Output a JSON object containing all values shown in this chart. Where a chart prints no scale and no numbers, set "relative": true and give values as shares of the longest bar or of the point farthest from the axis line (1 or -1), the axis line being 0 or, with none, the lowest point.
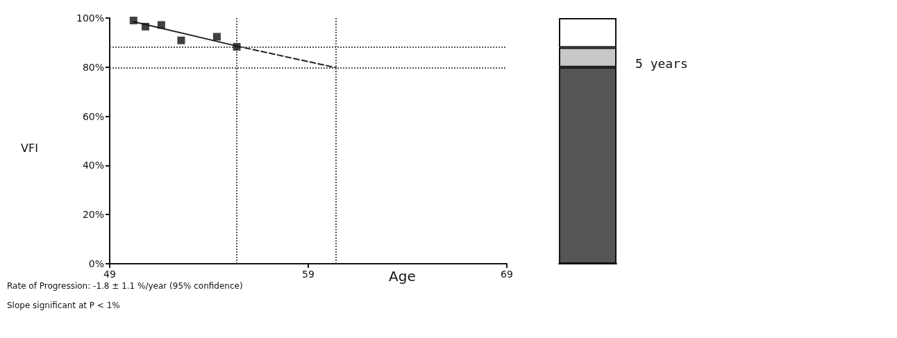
{
  "chart_data": [
    {
      "type": "scatter",
      "xlabel": "Age",
      "ylabel": "VFI",
      "marker": "square",
      "grid": false,
      "xlim": [
        49,
        69
      ],
      "xticks": [
        49,
        59,
        69
      ],
      "ylim": [
        0,
        100
      ],
      "yticks": [
        {
          "value": 0,
          "label": "0%"
        },
        {
          "value": 20,
          "label": "20%"
        },
        {
          "value": 40,
          "label": "40%"
        },
        {
          "value": 60,
          "label": "60%"
        },
        {
          "value": 80,
          "label": "80%"
        },
        {
          "value": 100,
          "label": "100%"
        }
      ],
      "series": [
        {
          "type": "scatter",
          "color": "#111111",
          "x": [
            50.2,
            50.8,
            51.6,
            52.6,
            54.4,
            55.4
          ],
          "values": [
            99,
            96.5,
            97.2,
            90.9,
            92.4,
            88.3
          ]
        },
        {
          "type": "line",
          "color": "#222222",
          "marker": "none",
          "line_style": "solid",
          "x": [
            50.2,
            55.4
          ],
          "values": [
            98.5,
            88.6
          ]
        },
        {
          "type": "line",
          "color": "#222222",
          "marker": "none",
          "line_style": "dashed",
          "x": [
            55.4,
            60.4
          ],
          "values": [
            88.6,
            79.8
          ]
        }
      ],
      "ref_lines": [
        {
          "axis": "x",
          "value": 55.4,
          "line_style": "dotted",
          "color": "#555555"
        },
        {
          "axis": "x",
          "value": 60.4,
          "line_style": "dotted",
          "color": "#555555"
        },
        {
          "axis": "y",
          "value": 88.3,
          "line_style": "dotted",
          "color": "#555555"
        },
        {
          "axis": "y",
          "value": 79.8,
          "line_style": "dotted",
          "color": "#555555"
        }
      ],
      "annotations": [
        "Rate of Progression: -1.8 ± 1.1 %/year (95% confidence)",
        "Slope significant at P < 1%"
      ]
    },
    {
      "type": "bar",
      "stacked": true,
      "categories": [
        null
      ],
      "relative": true,
      "series": [
        {
          "color": "#555555",
          "values": [
            0.8
          ]
        },
        {
          "color": "#c8c8c8",
          "values": [
            0.08
          ]
        },
        {
          "color": "#ffffff",
          "values": [
            0.12
          ]
        }
      ],
      "annotations": [
        "5 years"
      ]
    }
  ]
}
